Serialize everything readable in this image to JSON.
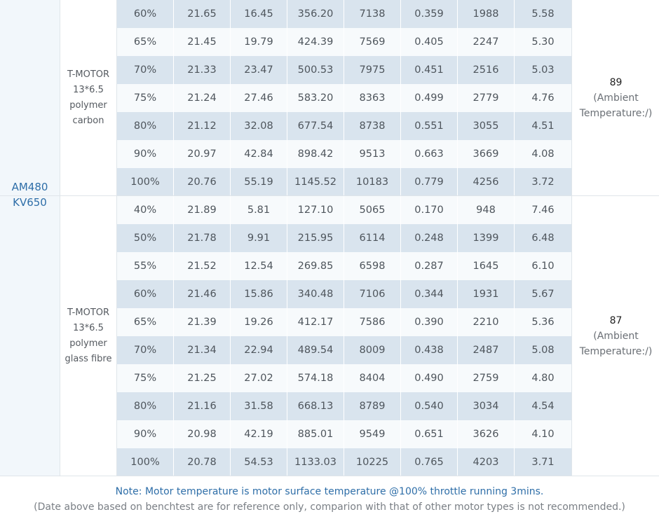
{
  "motor": {
    "name": "AM480\nKV650"
  },
  "groups": [
    {
      "prop": "T-MOTOR\n13*6.5\npolymer\ncarbon",
      "temp_value": "89",
      "temp_note": "(Ambient\nTemperature:/)",
      "rows": [
        [
          "60%",
          "21.65",
          "16.45",
          "356.20",
          "7138",
          "0.359",
          "1988",
          "5.58"
        ],
        [
          "65%",
          "21.45",
          "19.79",
          "424.39",
          "7569",
          "0.405",
          "2247",
          "5.30"
        ],
        [
          "70%",
          "21.33",
          "23.47",
          "500.53",
          "7975",
          "0.451",
          "2516",
          "5.03"
        ],
        [
          "75%",
          "21.24",
          "27.46",
          "583.20",
          "8363",
          "0.499",
          "2779",
          "4.76"
        ],
        [
          "80%",
          "21.12",
          "32.08",
          "677.54",
          "8738",
          "0.551",
          "3055",
          "4.51"
        ],
        [
          "90%",
          "20.97",
          "42.84",
          "898.42",
          "9513",
          "0.663",
          "3669",
          "4.08"
        ],
        [
          "100%",
          "20.76",
          "55.19",
          "1145.52",
          "10183",
          "0.779",
          "4256",
          "3.72"
        ]
      ]
    },
    {
      "prop": "T-MOTOR\n13*6.5\npolymer\nglass fibre",
      "temp_value": "87",
      "temp_note": "(Ambient\nTemperature:/)",
      "rows": [
        [
          "40%",
          "21.89",
          "5.81",
          "127.10",
          "5065",
          "0.170",
          "948",
          "7.46"
        ],
        [
          "50%",
          "21.78",
          "9.91",
          "215.95",
          "6114",
          "0.248",
          "1399",
          "6.48"
        ],
        [
          "55%",
          "21.52",
          "12.54",
          "269.85",
          "6598",
          "0.287",
          "1645",
          "6.10"
        ],
        [
          "60%",
          "21.46",
          "15.86",
          "340.48",
          "7106",
          "0.344",
          "1931",
          "5.67"
        ],
        [
          "65%",
          "21.39",
          "19.26",
          "412.17",
          "7586",
          "0.390",
          "2210",
          "5.36"
        ],
        [
          "70%",
          "21.34",
          "22.94",
          "489.54",
          "8009",
          "0.438",
          "2487",
          "5.08"
        ],
        [
          "75%",
          "21.25",
          "27.02",
          "574.18",
          "8404",
          "0.490",
          "2759",
          "4.80"
        ],
        [
          "80%",
          "21.16",
          "31.58",
          "668.13",
          "8789",
          "0.540",
          "3034",
          "4.54"
        ],
        [
          "90%",
          "20.98",
          "42.19",
          "885.01",
          "9549",
          "0.651",
          "3626",
          "4.10"
        ],
        [
          "100%",
          "20.78",
          "54.53",
          "1133.03",
          "10225",
          "0.765",
          "4203",
          "3.71"
        ]
      ]
    }
  ],
  "footer": {
    "note": "Note: Motor temperature is motor surface temperature @100% throttle running 3mins.",
    "disclaimer": "(Date above based on benchtest are for reference only, comparion with that of other motor types is not recommended.)"
  }
}
